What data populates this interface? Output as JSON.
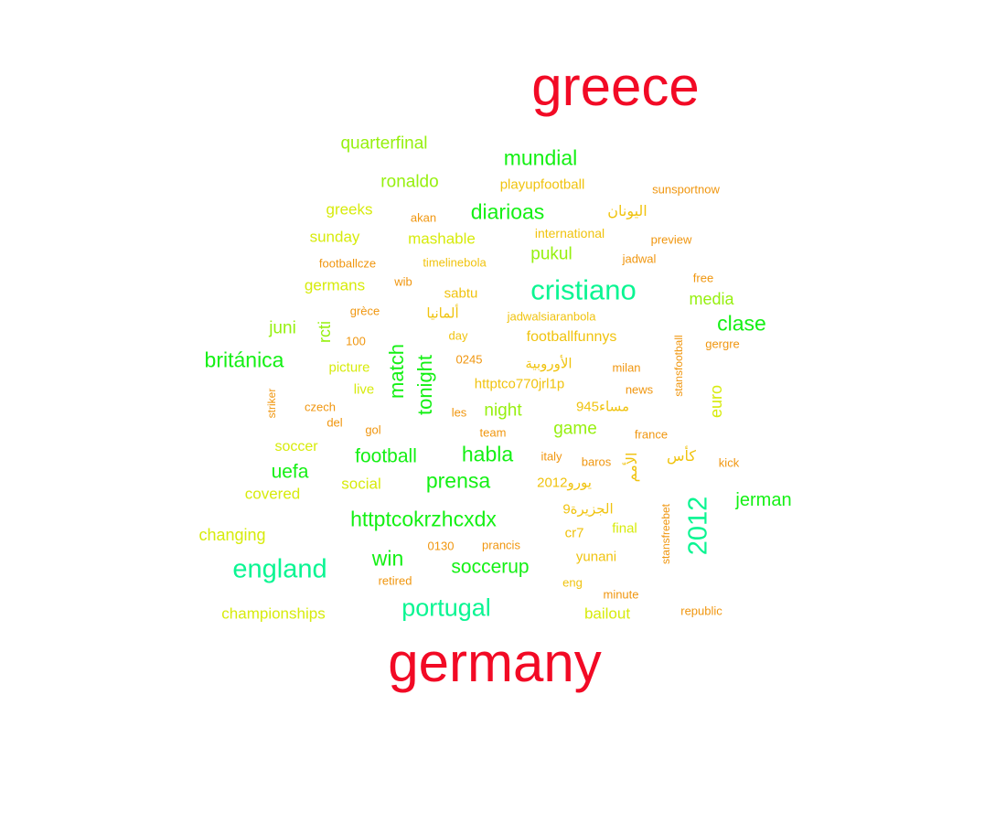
{
  "palette": {
    "red": "#f20a25",
    "green": "#14f014",
    "teal": "#0af592",
    "lime": "#96f00f",
    "yellow": "#d7eb0c",
    "gold": "#f0c30f",
    "orange": "#f0960f"
  },
  "words": [
    {
      "text": "greece",
      "color": "red"
    },
    {
      "text": "germany",
      "color": "red"
    },
    {
      "text": "cristiano",
      "color": "teal"
    },
    {
      "text": "2012",
      "color": "teal"
    },
    {
      "text": "england",
      "color": "teal"
    },
    {
      "text": "portugal",
      "color": "teal"
    },
    {
      "text": "mundial",
      "color": "green"
    },
    {
      "text": "diarioas",
      "color": "green"
    },
    {
      "text": "clase",
      "color": "green"
    },
    {
      "text": "británica",
      "color": "green"
    },
    {
      "text": "habla",
      "color": "green"
    },
    {
      "text": "prensa",
      "color": "green"
    },
    {
      "text": "httptcokrzhcxdx",
      "color": "green"
    },
    {
      "text": "win",
      "color": "green"
    },
    {
      "text": "soccerup",
      "color": "green"
    },
    {
      "text": "football",
      "color": "green"
    },
    {
      "text": "uefa",
      "color": "green"
    },
    {
      "text": "match",
      "color": "green"
    },
    {
      "text": "tonight",
      "color": "green"
    },
    {
      "text": "jerman",
      "color": "green"
    },
    {
      "text": "quarterfinal",
      "color": "lime"
    },
    {
      "text": "ronaldo",
      "color": "lime"
    },
    {
      "text": "pukul",
      "color": "lime"
    },
    {
      "text": "night",
      "color": "lime"
    },
    {
      "text": "game",
      "color": "lime"
    },
    {
      "text": "media",
      "color": "lime"
    },
    {
      "text": "juni",
      "color": "lime"
    },
    {
      "text": "rcti",
      "color": "lime"
    },
    {
      "text": "euro",
      "color": "yellow"
    },
    {
      "text": "greeks",
      "color": "yellow"
    },
    {
      "text": "sunday",
      "color": "yellow"
    },
    {
      "text": "mashable",
      "color": "yellow"
    },
    {
      "text": "germans",
      "color": "yellow"
    },
    {
      "text": "social",
      "color": "yellow"
    },
    {
      "text": "soccer",
      "color": "yellow"
    },
    {
      "text": "covered",
      "color": "yellow"
    },
    {
      "text": "changing",
      "color": "yellow"
    },
    {
      "text": "championships",
      "color": "yellow"
    },
    {
      "text": "bailout",
      "color": "yellow"
    },
    {
      "text": "final",
      "color": "yellow"
    },
    {
      "text": "picture",
      "color": "yellow"
    },
    {
      "text": "live",
      "color": "yellow"
    },
    {
      "text": "playupfootball",
      "color": "gold"
    },
    {
      "text": "اليونان",
      "color": "gold"
    },
    {
      "text": "sabtu",
      "color": "gold"
    },
    {
      "text": "ألمانيا",
      "color": "gold"
    },
    {
      "text": "footballfunnys",
      "color": "gold"
    },
    {
      "text": "الأوروبية",
      "color": "gold"
    },
    {
      "text": "httptco770jrl1p",
      "color": "gold"
    },
    {
      "text": "مساء945",
      "color": "gold"
    },
    {
      "text": "كأس",
      "color": "gold"
    },
    {
      "text": "الأمم",
      "color": "gold"
    },
    {
      "text": "يورو2012",
      "color": "gold"
    },
    {
      "text": "الجزيرة9",
      "color": "gold"
    },
    {
      "text": "cr7",
      "color": "gold"
    },
    {
      "text": "yunani",
      "color": "gold"
    },
    {
      "text": "timelinebola",
      "color": "gold"
    },
    {
      "text": "international",
      "color": "gold"
    },
    {
      "text": "jadwalsiaranbola",
      "color": "gold"
    },
    {
      "text": "day",
      "color": "gold"
    },
    {
      "text": "eng",
      "color": "gold"
    },
    {
      "text": "sunsportnow",
      "color": "orange"
    },
    {
      "text": "preview",
      "color": "orange"
    },
    {
      "text": "jadwal",
      "color": "orange"
    },
    {
      "text": "free",
      "color": "orange"
    },
    {
      "text": "akan",
      "color": "orange"
    },
    {
      "text": "footballcze",
      "color": "orange"
    },
    {
      "text": "wib",
      "color": "orange"
    },
    {
      "text": "grèce",
      "color": "orange"
    },
    {
      "text": "100",
      "color": "orange"
    },
    {
      "text": "gergre",
      "color": "orange"
    },
    {
      "text": "stansfootball",
      "color": "orange"
    },
    {
      "text": "0245",
      "color": "orange"
    },
    {
      "text": "milan",
      "color": "orange"
    },
    {
      "text": "news",
      "color": "orange"
    },
    {
      "text": "striker",
      "color": "orange"
    },
    {
      "text": "czech",
      "color": "orange"
    },
    {
      "text": "del",
      "color": "orange"
    },
    {
      "text": "gol",
      "color": "orange"
    },
    {
      "text": "les",
      "color": "orange"
    },
    {
      "text": "team",
      "color": "orange"
    },
    {
      "text": "france",
      "color": "orange"
    },
    {
      "text": "italy",
      "color": "orange"
    },
    {
      "text": "baros",
      "color": "orange"
    },
    {
      "text": "kick",
      "color": "orange"
    },
    {
      "text": "stansfreebet",
      "color": "orange"
    },
    {
      "text": "0130",
      "color": "orange"
    },
    {
      "text": "prancis",
      "color": "orange"
    },
    {
      "text": "retired",
      "color": "orange"
    },
    {
      "text": "minute",
      "color": "orange"
    },
    {
      "text": "republic",
      "color": "orange"
    }
  ]
}
